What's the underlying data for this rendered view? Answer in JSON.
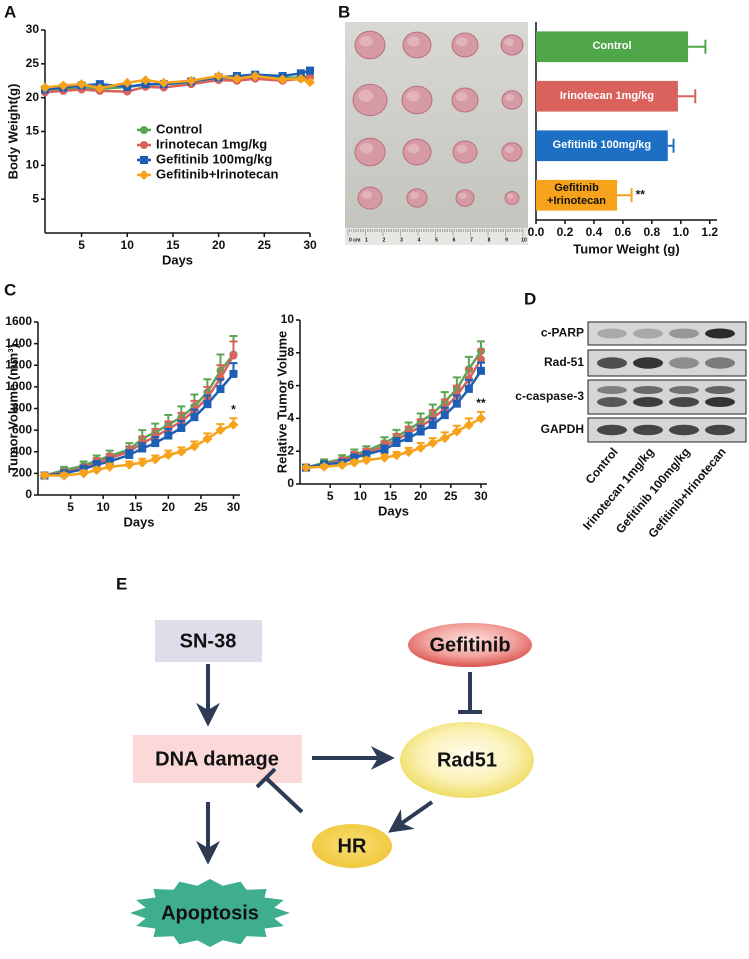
{
  "panel_labels": [
    "A",
    "B",
    "C",
    "D",
    "E"
  ],
  "chart_data": [
    {
      "type": "line",
      "xlabel": "Days",
      "ylabel": "Body Weight(g)",
      "x": [
        1,
        3,
        5,
        7,
        10,
        12,
        14,
        17,
        20,
        22,
        24,
        27,
        29,
        30
      ],
      "xlim": [
        1,
        30
      ],
      "xticks": [
        5,
        10,
        15,
        20,
        25,
        30
      ],
      "ylim": [
        0,
        30
      ],
      "yticks": [
        5,
        10,
        15,
        20,
        25,
        30
      ],
      "legend": "center",
      "series": [
        {
          "name": "Control",
          "color": "#5ba554",
          "marker": "circle",
          "values": [
            21,
            21.3,
            21.5,
            21.3,
            21.6,
            21.9,
            22,
            22.2,
            22.8,
            22.9,
            23,
            22.9,
            23,
            23.2
          ]
        },
        {
          "name": "Irinotecan 1mg/kg",
          "color": "#d9625d",
          "marker": "circle",
          "values": [
            20.8,
            21,
            21.2,
            21,
            20.9,
            21.6,
            21.5,
            22,
            22.6,
            22.5,
            22.8,
            22.5,
            22.8,
            23
          ]
        },
        {
          "name": "Gefitinib 100mg/kg",
          "color": "#1d5fb4",
          "marker": "square",
          "values": [
            21.2,
            21.5,
            21.8,
            22,
            21.6,
            22,
            22,
            22.4,
            23,
            23.2,
            23.4,
            23.2,
            23.6,
            24
          ]
        },
        {
          "name": "Gefitinib+Irinotecan",
          "color": "#f7a21b",
          "marker": "diamond",
          "values": [
            21.5,
            21.8,
            22,
            21.4,
            22.2,
            22.6,
            22.2,
            22.5,
            23.2,
            22.8,
            23.2,
            22.7,
            22.8,
            22.3
          ]
        }
      ]
    },
    {
      "type": "hbar",
      "xlabel": "Tumor Weight (g)",
      "categories": [
        "Control",
        "Irinotecan 1mg/kg",
        "Gefitinib 100mg/kg",
        "Gefitinib\n+Irinotecan"
      ],
      "values": [
        1.05,
        0.98,
        0.91,
        0.56
      ],
      "errors": [
        0.12,
        0.12,
        0.04,
        0.1
      ],
      "colors": [
        "#4fa74a",
        "#d9625d",
        "#1d6fc4",
        "#f7a21b"
      ],
      "annotation": "**",
      "xlim": [
        0,
        1.25
      ],
      "xticks": [
        {
          "value": 0,
          "label": "0.0"
        },
        0.2,
        0.4,
        0.6,
        0.8,
        {
          "value": 1,
          "label": "1.0"
        },
        1.2
      ]
    },
    {
      "type": "line",
      "xlabel": "Days",
      "ylabel": "Tumor Volume (mm³)",
      "x": [
        1,
        4,
        7,
        9,
        11,
        14,
        16,
        18,
        20,
        22,
        24,
        26,
        28,
        30
      ],
      "xlim": [
        0,
        31
      ],
      "xticks": [
        5,
        10,
        15,
        20,
        25,
        30
      ],
      "ylim": [
        0,
        1600
      ],
      "yticks": [
        0,
        200,
        400,
        600,
        800,
        1000,
        1200,
        1400,
        1600
      ],
      "annotation": "*",
      "series": [
        {
          "name": "Control",
          "color": "#5ba554",
          "marker": "circle",
          "values": [
            180,
            230,
            270,
            320,
            360,
            420,
            520,
            580,
            650,
            720,
            820,
            950,
            1150,
            1300
          ],
          "errors": [
            20,
            30,
            40,
            45,
            50,
            60,
            80,
            80,
            90,
            100,
            110,
            120,
            150,
            170
          ]
        },
        {
          "name": "Irinotecan 1mg/kg",
          "color": "#d9625d",
          "marker": "circle",
          "values": [
            180,
            210,
            250,
            300,
            340,
            400,
            480,
            540,
            610,
            680,
            780,
            900,
            1080,
            1290
          ],
          "errors": [
            20,
            25,
            30,
            40,
            40,
            50,
            60,
            70,
            70,
            80,
            90,
            100,
            120,
            130
          ]
        },
        {
          "name": "Gefitinib 100mg/kg",
          "color": "#1d5fb4",
          "marker": "square",
          "values": [
            180,
            200,
            240,
            280,
            310,
            370,
            430,
            480,
            550,
            620,
            720,
            840,
            980,
            1120
          ],
          "errors": [
            20,
            25,
            30,
            35,
            35,
            45,
            50,
            55,
            60,
            65,
            70,
            80,
            90,
            100
          ]
        },
        {
          "name": "Gefitinib+Irinotecan",
          "color": "#f7a21b",
          "marker": "diamond",
          "values": [
            180,
            180,
            200,
            230,
            260,
            280,
            300,
            330,
            370,
            400,
            450,
            520,
            600,
            650
          ],
          "errors": [
            20,
            20,
            25,
            25,
            30,
            30,
            35,
            35,
            40,
            40,
            45,
            50,
            55,
            60
          ]
        }
      ]
    },
    {
      "type": "line",
      "xlabel": "Days",
      "ylabel": "Relative Tumor Volume",
      "x": [
        1,
        4,
        7,
        9,
        11,
        14,
        16,
        18,
        20,
        22,
        24,
        26,
        28,
        30
      ],
      "xlim": [
        0,
        31
      ],
      "xticks": [
        5,
        10,
        15,
        20,
        25,
        30
      ],
      "ylim": [
        0,
        10
      ],
      "yticks": [
        0,
        2,
        4,
        6,
        8,
        10
      ],
      "annotation": "**",
      "series": [
        {
          "name": "Control",
          "color": "#5ba554",
          "marker": "circle",
          "values": [
            1,
            1.3,
            1.5,
            1.8,
            2,
            2.5,
            2.9,
            3.3,
            3.8,
            4.3,
            5,
            5.8,
            7,
            8.1
          ],
          "errors": [
            0.05,
            0.2,
            0.25,
            0.3,
            0.3,
            0.35,
            0.4,
            0.45,
            0.5,
            0.55,
            0.6,
            0.7,
            0.75,
            0.6
          ]
        },
        {
          "name": "Irinotecan 1mg/kg",
          "color": "#d9625d",
          "marker": "circle",
          "values": [
            1,
            1.2,
            1.4,
            1.7,
            1.9,
            2.3,
            2.7,
            3.1,
            3.5,
            4,
            4.6,
            5.4,
            6.4,
            7.6
          ],
          "errors": [
            0.05,
            0.15,
            0.2,
            0.25,
            0.25,
            0.3,
            0.35,
            0.4,
            0.45,
            0.5,
            0.55,
            0.6,
            0.65,
            0.6
          ]
        },
        {
          "name": "Gefitinib 100mg/kg",
          "color": "#1d5fb4",
          "marker": "square",
          "values": [
            1,
            1.2,
            1.3,
            1.6,
            1.8,
            2.1,
            2.5,
            2.8,
            3.2,
            3.6,
            4.2,
            4.9,
            5.8,
            6.9
          ],
          "errors": [
            0.05,
            0.15,
            0.15,
            0.2,
            0.2,
            0.25,
            0.3,
            0.3,
            0.35,
            0.4,
            0.45,
            0.5,
            0.55,
            0.5
          ]
        },
        {
          "name": "Gefitinib+Irinotecan",
          "color": "#f7a21b",
          "marker": "diamond",
          "values": [
            1,
            1.05,
            1.15,
            1.3,
            1.45,
            1.6,
            1.75,
            1.95,
            2.2,
            2.5,
            2.8,
            3.2,
            3.6,
            4
          ],
          "errors": [
            0.05,
            0.1,
            0.1,
            0.15,
            0.15,
            0.2,
            0.2,
            0.25,
            0.3,
            0.3,
            0.35,
            0.35,
            0.4,
            0.4
          ]
        }
      ]
    }
  ],
  "photo": {
    "ruler_labels": [
      "0 cm",
      "1",
      "2",
      "3",
      "4",
      "5",
      "6",
      "7",
      "8",
      "9",
      "10"
    ]
  },
  "blot": {
    "rows": [
      "c-PARP",
      "Rad-51",
      "c-caspase-3",
      "GAPDH"
    ],
    "lanes": [
      "Control",
      "Irinotecan 1mg/kg",
      "Gefitinib 100mg/kg",
      "Gefitinib+Irinotecan"
    ]
  },
  "diagram": {
    "nodes": [
      {
        "label": "SN-38"
      },
      {
        "label": "Gefitinib"
      },
      {
        "label": "DNA damage"
      },
      {
        "label": "Rad51"
      },
      {
        "label": "HR"
      },
      {
        "label": "Apoptosis"
      }
    ]
  }
}
